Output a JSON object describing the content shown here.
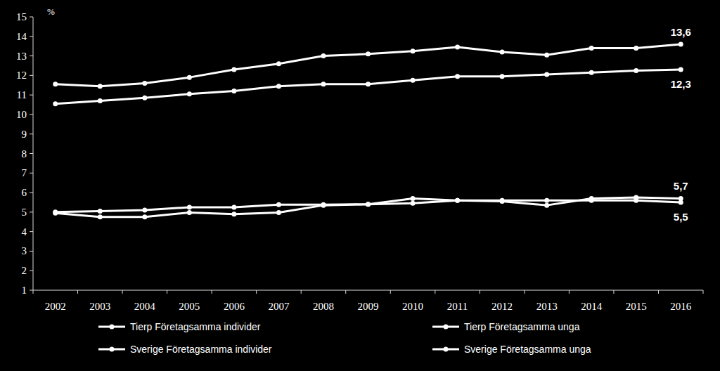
{
  "chart_data": {
    "type": "line",
    "y_label": "%",
    "categories": [
      "2002",
      "2003",
      "2004",
      "2005",
      "2006",
      "2007",
      "2008",
      "2009",
      "2010",
      "2011",
      "2012",
      "2013",
      "2014",
      "2015",
      "2016"
    ],
    "series": [
      {
        "name": "Tierp Företagsamma individer",
        "color": "#ffffff",
        "marker": "circle",
        "values": [
          11.55,
          11.45,
          11.6,
          11.9,
          12.3,
          12.6,
          13.0,
          13.1,
          13.25,
          13.45,
          13.2,
          13.05,
          13.4,
          13.4,
          13.6
        ]
      },
      {
        "name": "Tierp Företagsamma unga",
        "color": "#ffffff",
        "marker": "circle",
        "values": [
          4.95,
          4.75,
          4.75,
          4.98,
          4.9,
          4.98,
          5.35,
          5.4,
          5.7,
          5.6,
          5.55,
          5.35,
          5.7,
          5.75,
          5.7
        ]
      },
      {
        "name": "Sverige Företagsamma individer",
        "color": "#ffffff",
        "marker": "circle",
        "values": [
          10.55,
          10.7,
          10.85,
          11.05,
          11.2,
          11.45,
          11.55,
          11.55,
          11.75,
          11.95,
          11.95,
          12.05,
          12.15,
          12.25,
          12.3
        ]
      },
      {
        "name": "Sverige Företagsamma unga",
        "color": "#ffffff",
        "marker": "circle",
        "values": [
          5.0,
          5.05,
          5.1,
          5.25,
          5.25,
          5.38,
          5.38,
          5.4,
          5.45,
          5.6,
          5.6,
          5.6,
          5.6,
          5.6,
          5.5
        ]
      }
    ],
    "annotations": [
      {
        "text": "13,6",
        "series": 0,
        "index": 14
      },
      {
        "text": "12,3",
        "series": 2,
        "index": 14
      },
      {
        "text": "5,7",
        "series": 1,
        "index": 14
      },
      {
        "text": "5,5",
        "series": 3,
        "index": 14
      }
    ],
    "ylim": [
      1,
      15
    ],
    "yticks": [
      1,
      2,
      3,
      4,
      5,
      6,
      7,
      8,
      9,
      10,
      11,
      12,
      13,
      14,
      15
    ],
    "grid": false,
    "legend": "bottom"
  }
}
